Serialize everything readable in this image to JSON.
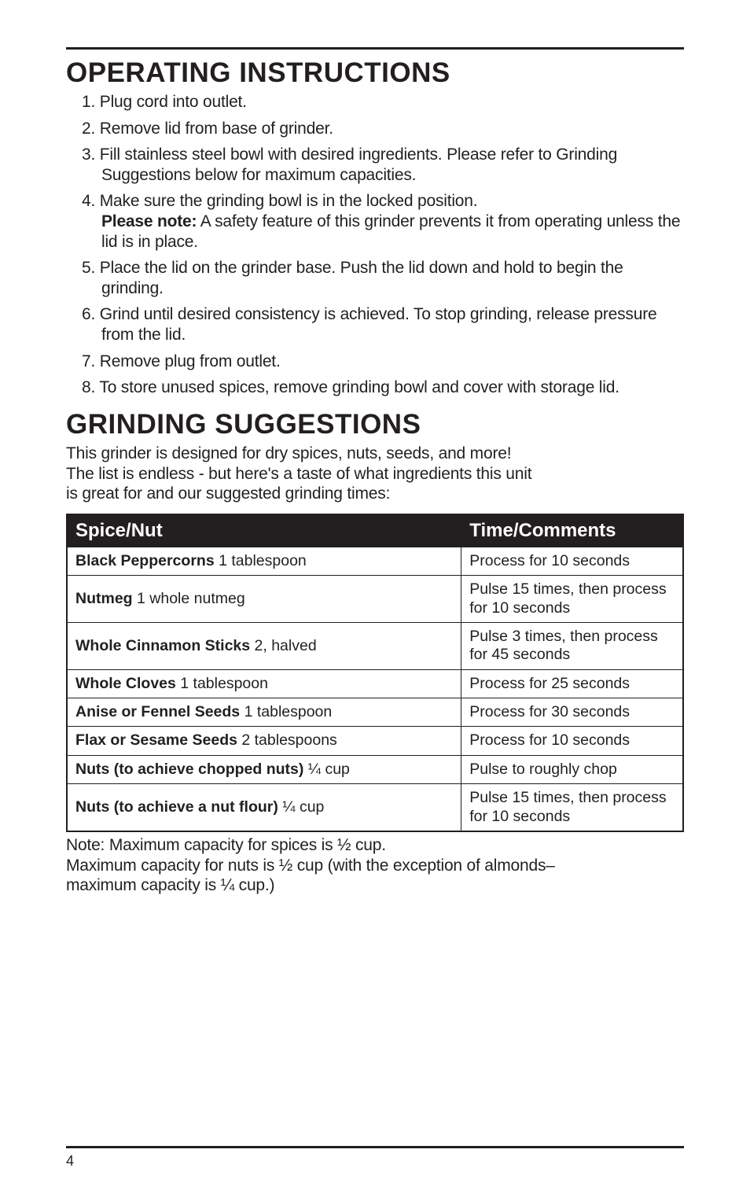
{
  "section1": {
    "heading": "OPERATING INSTRUCTIONS",
    "items": [
      {
        "num": "1.",
        "text": "Plug cord into outlet."
      },
      {
        "num": "2.",
        "text": "Remove lid from base of grinder."
      },
      {
        "num": "3.",
        "text": "Fill stainless steel bowl with desired ingredients. Please refer to Grinding Suggestions below for maximum capacities."
      },
      {
        "num": "4.",
        "pre": "Make sure the grinding bowl is in the locked position.",
        "bold": "Please note:",
        "post": " A safety feature of this grinder prevents it from operating unless the lid is in place."
      },
      {
        "num": "5.",
        "text": "Place the lid on the grinder base. Push the lid down and hold to begin the grinding."
      },
      {
        "num": "6.",
        "text": "Grind until desired consistency is achieved. To stop grinding, release pressure from the lid."
      },
      {
        "num": "7.",
        "text": "Remove plug from outlet."
      },
      {
        "num": "8.",
        "text": "To store unused spices, remove grinding bowl and cover with storage lid."
      }
    ]
  },
  "section2": {
    "heading": "GRINDING SUGGESTIONS",
    "intro_l1": "This grinder is designed for dry spices, nuts, seeds, and more!",
    "intro_l2": "The list is endless - but here's a taste of what ingredients this unit",
    "intro_l3": "is great for and our suggested grinding times:"
  },
  "table": {
    "columns": [
      "Spice/Nut",
      "Time/Comments"
    ],
    "col_widths": [
      "64%",
      "36%"
    ],
    "header_bg": "#231f20",
    "header_fg": "#ffffff",
    "border_color": "#231f20",
    "font_size_header": 24,
    "font_size_cell": 19.5,
    "rows": [
      {
        "bold": "Black Peppercorns",
        "rest": " 1 tablespoon",
        "time": "Process for 10 seconds"
      },
      {
        "bold": "Nutmeg",
        "rest": " 1 whole nutmeg",
        "time": "Pulse 15 times, then process for 10 seconds"
      },
      {
        "bold": "Whole Cinnamon Sticks",
        "rest": " 2, halved",
        "time": "Pulse 3 times, then process for 45 seconds"
      },
      {
        "bold": "Whole Cloves",
        "rest": " 1 tablespoon",
        "time": "Process for 25 seconds"
      },
      {
        "bold": "Anise or Fennel Seeds",
        "rest": " 1 tablespoon",
        "time": "Process for 30 seconds"
      },
      {
        "bold": "Flax or Sesame Seeds",
        "rest": " 2 tablespoons",
        "time": "Process for 10 seconds"
      },
      {
        "bold": "Nuts (to achieve chopped nuts)",
        "rest": " ¼ cup",
        "time": "Pulse to roughly chop"
      },
      {
        "bold": "Nuts (to achieve a nut flour)",
        "rest": " ¼ cup",
        "time": "Pulse 15 times, then process for 10 seconds"
      }
    ]
  },
  "note": {
    "l1": "Note: Maximum capacity for spices is ½ cup.",
    "l2": "Maximum capacity for nuts is ½ cup (with the exception of almonds–",
    "l3": "maximum capacity is ¼ cup.)"
  },
  "page_number": "4"
}
